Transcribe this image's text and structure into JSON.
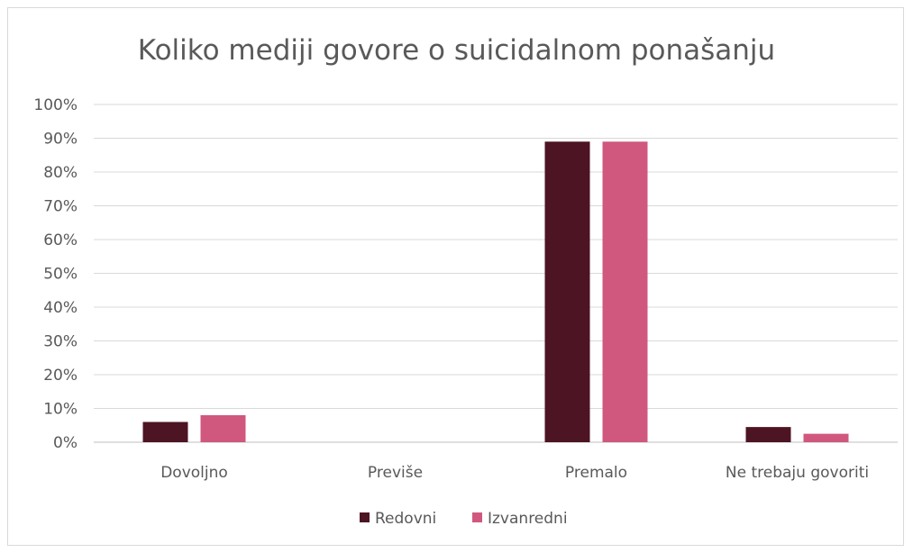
{
  "chart_data": {
    "type": "bar",
    "title": "Koliko mediji govore o suicidalnom ponašanju",
    "categories": [
      "Dovoljno",
      "Previše",
      "Premalo",
      "Ne trebaju govoriti"
    ],
    "series": [
      {
        "name": "Redovni",
        "color": "#4d1424",
        "values": [
          6,
          0,
          89,
          4.5
        ]
      },
      {
        "name": "Izvanredni",
        "color": "#d0587e",
        "values": [
          8,
          0,
          89,
          2.5
        ]
      }
    ],
    "ylim": [
      0,
      100
    ],
    "yticks": [
      "0%",
      "10%",
      "20%",
      "30%",
      "40%",
      "50%",
      "60%",
      "70%",
      "80%",
      "90%",
      "100%"
    ],
    "grid": true,
    "legend_position": "bottom"
  }
}
